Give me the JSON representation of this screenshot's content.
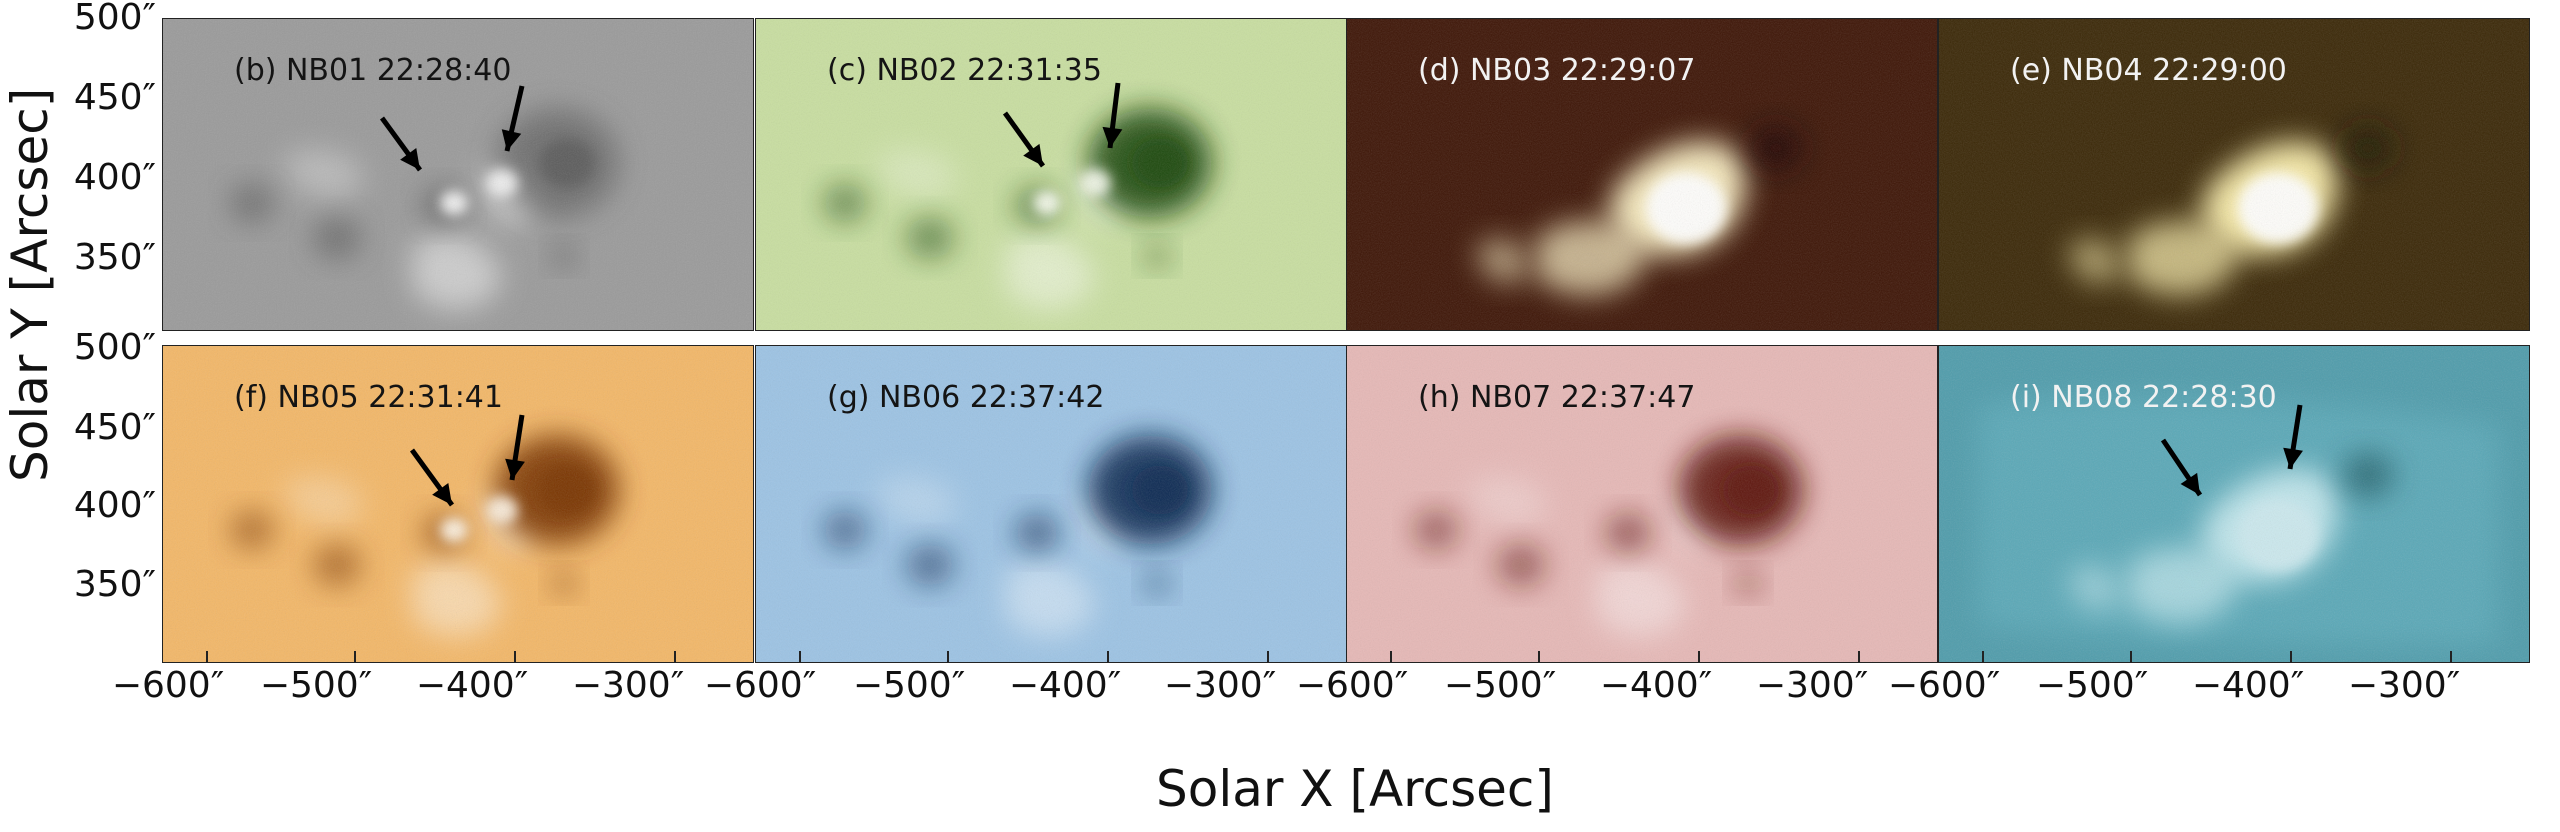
{
  "figure": {
    "ylabel": "Solar Y [Arcsec]",
    "xlabel": "Solar X [Arcsec]",
    "row1_yticks": [
      "500″",
      "450″",
      "400″",
      "350″"
    ],
    "row2_yticks": [
      "500″",
      "450″",
      "400″",
      "350″"
    ],
    "xticks_col1": [
      "−600″",
      "−500″",
      "−400″",
      "−300″"
    ],
    "xticks_col2": [
      "−600″",
      "−500″",
      "−400″",
      "−300″"
    ],
    "xticks_col3": [
      "−600″",
      "−500″",
      "−400″",
      "−300″"
    ],
    "xticks_col4": [
      "−600″",
      "−500″",
      "−400″",
      "−300″"
    ]
  },
  "panels": [
    {
      "id": "b",
      "label": "(b) NB01 22:28:40",
      "bg": "#9a9a9a",
      "dark": "#4e4e4e",
      "bright": "#f4f4f4",
      "text": "dark",
      "mode": "absorb",
      "arrows": 2
    },
    {
      "id": "c",
      "label": "(c) NB02 22:31:35",
      "bg": "#c8dea0",
      "dark": "#1f4a0a",
      "bright": "#f7fbee",
      "text": "dark",
      "mode": "absorb",
      "arrows": 2
    },
    {
      "id": "d",
      "label": "(d) NB03 22:29:07",
      "bg": "#3d1405",
      "dark": "#1a0602",
      "bright": "#fff4c8",
      "text": "light",
      "mode": "emit",
      "arrows": 0
    },
    {
      "id": "e",
      "label": "(e) NB04 22:29:00",
      "bg": "#3a2706",
      "dark": "#1e1303",
      "bright": "#fff3b0",
      "text": "light",
      "mode": "emit",
      "arrows": 0
    },
    {
      "id": "f",
      "label": "(f) NB05 22:31:41",
      "bg": "#f3b767",
      "dark": "#7a3604",
      "bright": "#fdf3e4",
      "text": "dark",
      "mode": "absorb",
      "arrows": 2
    },
    {
      "id": "g",
      "label": "(g) NB06 22:37:42",
      "bg": "#9cc3e4",
      "dark": "#0a2a52",
      "bright": "#e6f1fa",
      "text": "dark",
      "mode": "absorb",
      "arrows": 0
    },
    {
      "id": "h",
      "label": "(h) NB07 22:37:47",
      "bg": "#e6b8b6",
      "dark": "#5e1210",
      "bright": "#faeeee",
      "text": "dark",
      "mode": "absorb",
      "arrows": 0
    },
    {
      "id": "i",
      "label": "(i) NB08 22:28:30",
      "bg": "#4f9cab",
      "dark": "#06353d",
      "bright": "#f4ffff",
      "text": "light",
      "mode": "emit",
      "arrows": 2
    }
  ]
}
